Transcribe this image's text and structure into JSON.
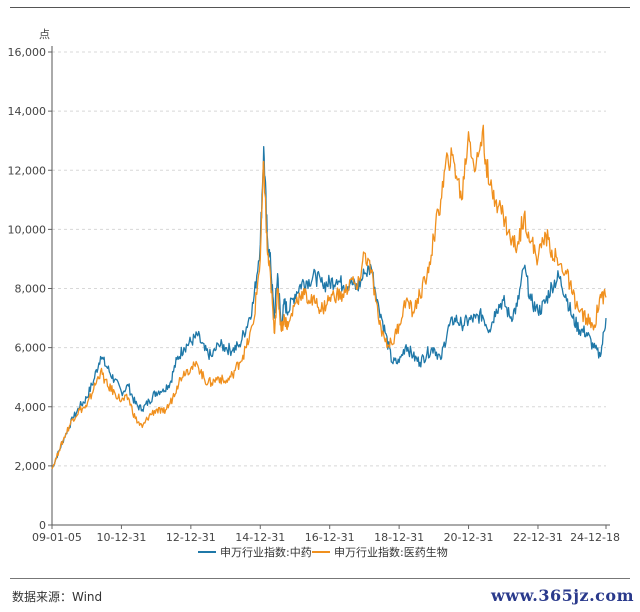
{
  "chart_data": {
    "type": "line",
    "ylabel": "点",
    "ylim": [
      0,
      16000
    ],
    "yticks": [
      "0",
      "2,000",
      "4,000",
      "6,000",
      "8,000",
      "10,000",
      "12,000",
      "14,000",
      "16,000"
    ],
    "ytick_values": [
      0,
      2000,
      4000,
      6000,
      8000,
      10000,
      12000,
      14000,
      16000
    ],
    "xticks": [
      "09-01-05",
      "10-12-31",
      "12-12-31",
      "14-12-31",
      "16-12-31",
      "18-12-31",
      "20-12-31",
      "22-12-31",
      "24-12-18"
    ],
    "xtick_values": [
      2009.0,
      2011.0,
      2013.0,
      2015.0,
      2017.0,
      2019.0,
      2021.0,
      2023.0,
      2024.96
    ],
    "xlim": [
      2009.0,
      2024.96
    ],
    "grid": "horizontal-dashed",
    "legend_position": "bottom",
    "series": [
      {
        "name": "申万行业指数:中药",
        "color": "#1f78a8",
        "x": [
          2009.0,
          2009.2,
          2009.4,
          2009.6,
          2009.8,
          2010.0,
          2010.2,
          2010.4,
          2010.6,
          2010.8,
          2011.0,
          2011.2,
          2011.4,
          2011.6,
          2011.8,
          2012.0,
          2012.2,
          2012.4,
          2012.6,
          2012.8,
          2013.0,
          2013.2,
          2013.4,
          2013.6,
          2013.8,
          2014.0,
          2014.2,
          2014.4,
          2014.6,
          2014.8,
          2015.0,
          2015.1,
          2015.2,
          2015.3,
          2015.4,
          2015.5,
          2015.6,
          2015.7,
          2015.8,
          2016.0,
          2016.2,
          2016.4,
          2016.6,
          2016.8,
          2017.0,
          2017.2,
          2017.4,
          2017.6,
          2017.8,
          2018.0,
          2018.2,
          2018.4,
          2018.6,
          2018.8,
          2019.0,
          2019.2,
          2019.4,
          2019.6,
          2019.8,
          2020.0,
          2020.2,
          2020.4,
          2020.6,
          2020.8,
          2021.0,
          2021.2,
          2021.4,
          2021.6,
          2021.8,
          2022.0,
          2022.2,
          2022.4,
          2022.6,
          2022.8,
          2023.0,
          2023.2,
          2023.4,
          2023.6,
          2023.8,
          2024.0,
          2024.2,
          2024.4,
          2024.6,
          2024.8,
          2024.96
        ],
        "values": [
          1900,
          2500,
          3100,
          3600,
          4000,
          4300,
          4900,
          5700,
          5300,
          4900,
          4500,
          4700,
          4100,
          3900,
          4200,
          4500,
          4600,
          4800,
          5600,
          6000,
          6200,
          6400,
          5900,
          5700,
          6100,
          6000,
          5900,
          6100,
          6700,
          7500,
          9500,
          12800,
          9800,
          8800,
          7000,
          8500,
          6800,
          7500,
          7200,
          7800,
          8200,
          8300,
          8400,
          8100,
          8200,
          8300,
          8100,
          8200,
          8000,
          8500,
          8700,
          7500,
          6500,
          5500,
          5500,
          6100,
          5700,
          5500,
          5800,
          6000,
          5600,
          6600,
          7000,
          6800,
          6900,
          7000,
          7100,
          6600,
          7300,
          7600,
          7000,
          7400,
          8700,
          7600,
          7200,
          7500,
          8100,
          8400,
          7800,
          7000,
          6600,
          6500,
          6000,
          5700,
          7000
        ]
      },
      {
        "name": "申万行业指数:医药生物",
        "color": "#f0901e",
        "x": [
          2009.0,
          2009.2,
          2009.4,
          2009.6,
          2009.8,
          2010.0,
          2010.2,
          2010.4,
          2010.6,
          2010.8,
          2011.0,
          2011.2,
          2011.4,
          2011.6,
          2011.8,
          2012.0,
          2012.2,
          2012.4,
          2012.6,
          2012.8,
          2013.0,
          2013.2,
          2013.4,
          2013.6,
          2013.8,
          2014.0,
          2014.2,
          2014.4,
          2014.6,
          2014.8,
          2015.0,
          2015.1,
          2015.2,
          2015.3,
          2015.4,
          2015.5,
          2015.6,
          2015.7,
          2015.8,
          2016.0,
          2016.2,
          2016.4,
          2016.6,
          2016.8,
          2017.0,
          2017.2,
          2017.4,
          2017.6,
          2017.8,
          2018.0,
          2018.2,
          2018.4,
          2018.6,
          2018.8,
          2019.0,
          2019.2,
          2019.4,
          2019.6,
          2019.8,
          2020.0,
          2020.2,
          2020.4,
          2020.6,
          2020.8,
          2021.0,
          2021.2,
          2021.4,
          2021.6,
          2021.8,
          2022.0,
          2022.2,
          2022.4,
          2022.6,
          2022.8,
          2023.0,
          2023.2,
          2023.4,
          2023.6,
          2023.8,
          2024.0,
          2024.2,
          2024.4,
          2024.6,
          2024.8,
          2024.96
        ],
        "values": [
          1900,
          2500,
          3100,
          3600,
          3900,
          4000,
          4600,
          5200,
          4700,
          4500,
          4200,
          4300,
          3600,
          3300,
          3700,
          3900,
          3800,
          4100,
          4700,
          5200,
          5300,
          5400,
          4900,
          4800,
          5000,
          4800,
          5100,
          5500,
          6000,
          6800,
          9000,
          12300,
          9300,
          8300,
          6500,
          8000,
          6600,
          7000,
          6700,
          7500,
          7900,
          7600,
          7500,
          7300,
          7700,
          7800,
          7700,
          8300,
          8000,
          9200,
          8600,
          7000,
          6200,
          6100,
          6800,
          7600,
          7200,
          7800,
          8400,
          9700,
          11000,
          12500,
          12200,
          11000,
          13300,
          12000,
          13300,
          11500,
          11000,
          10500,
          9700,
          9400,
          10500,
          9600,
          9000,
          9900,
          9300,
          8800,
          8600,
          7800,
          7200,
          7000,
          6600,
          7800,
          7700
        ]
      }
    ]
  },
  "footer": {
    "source": "数据来源：Wind",
    "watermark": "www.365jz.com"
  }
}
